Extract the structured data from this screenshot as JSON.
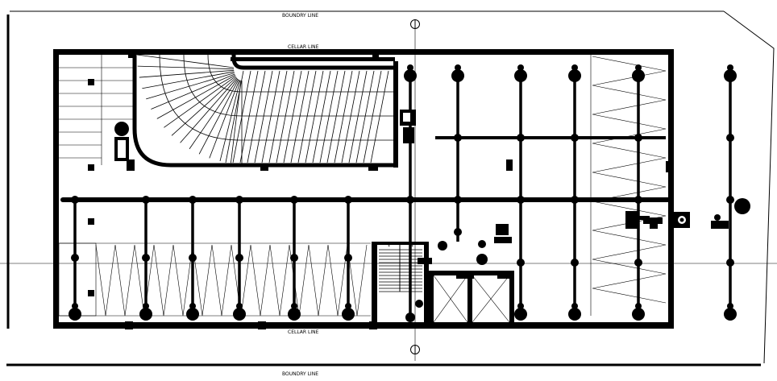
{
  "drawing": {
    "boundary_top_label": "BOUNDRY LINE",
    "boundary_bottom_label": "BOUNDRY LINE",
    "cellar_top_label": "CELLAR LINE",
    "cellar_bottom_label": "CELLAR LINE",
    "stair_up_markers": [
      "↓",
      "↓"
    ]
  },
  "colors": {
    "ink": "#000000",
    "paper": "#ffffff"
  },
  "symbols": [
    "column-icon",
    "north-marker-icon",
    "drain-icon",
    "toilet-icon",
    "washbasin-icon"
  ]
}
